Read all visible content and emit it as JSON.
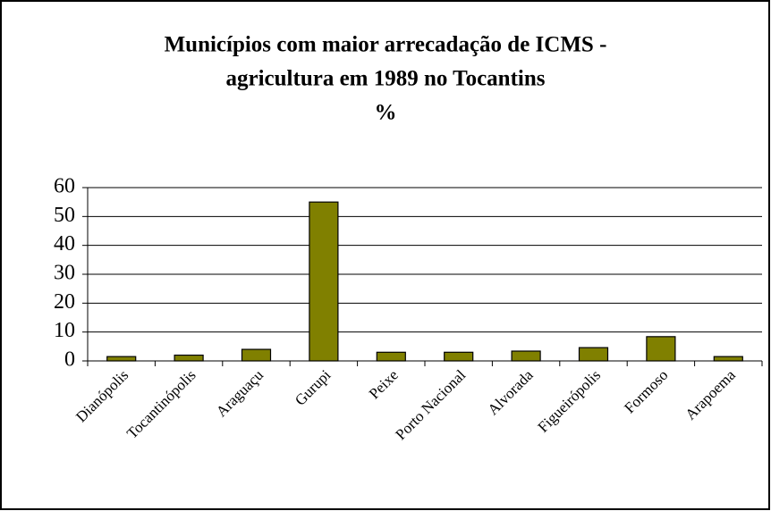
{
  "chart_data": {
    "type": "bar",
    "title": [
      "Municípios com maior arrecadação de ICMS -",
      "agricultura em 1989 no Tocantins",
      "%"
    ],
    "categories": [
      "Dianópolis",
      "Tocantinópolis",
      "Araguaçu",
      "Gurupi",
      "Peixe",
      "Porto Nacional",
      "Alvorada",
      "Figueirópolis",
      "Formoso",
      "Arapoema"
    ],
    "values": [
      1.5,
      2,
      4,
      55,
      3,
      3,
      3.4,
      4.6,
      8.4,
      1.5
    ],
    "color": "#808000",
    "ylim": [
      0,
      60
    ],
    "yticks": [
      0,
      10,
      20,
      30,
      40,
      50,
      60
    ],
    "grid": true
  }
}
